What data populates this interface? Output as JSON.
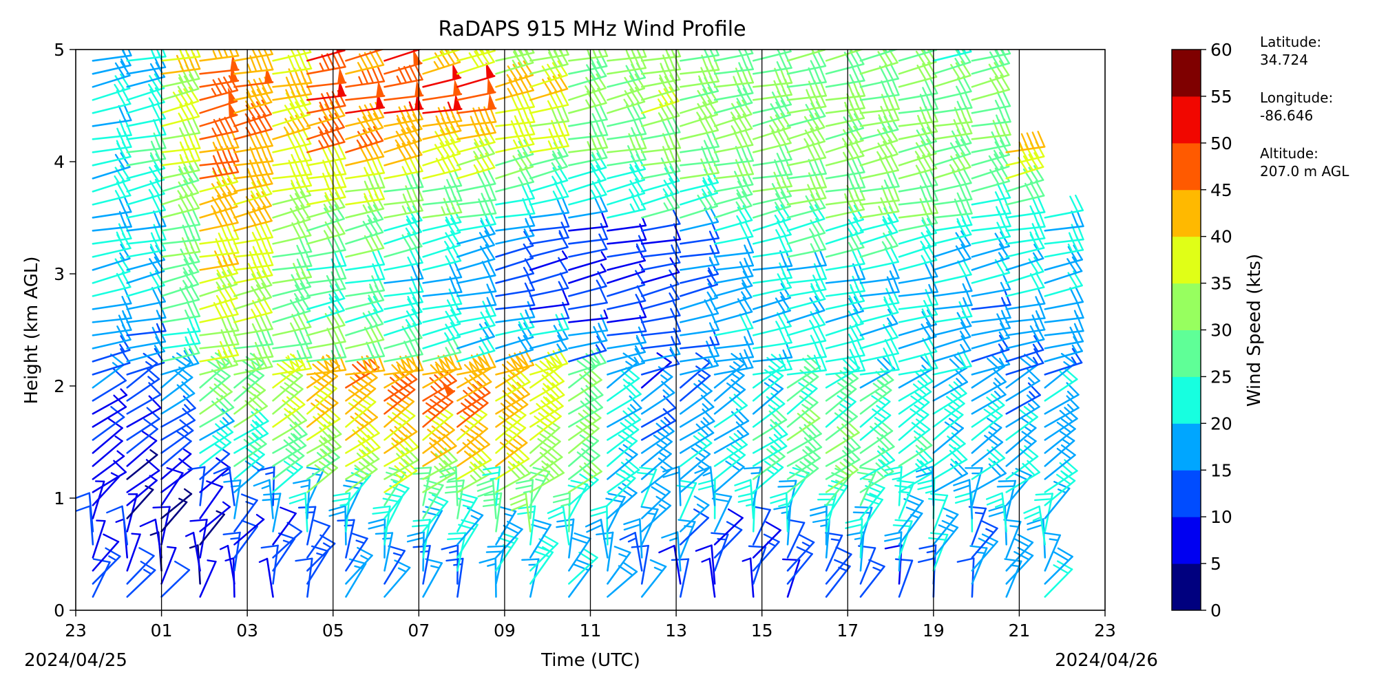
{
  "chart_data": {
    "type": "wind-barbs",
    "title": "RaDAPS 915 MHz Wind Profile",
    "xlabel": "Time (UTC)",
    "ylabel": "Height (km AGL)",
    "xlim": [
      -1,
      23
    ],
    "ylim": [
      0,
      5
    ],
    "x_ticks": [
      "23",
      "01",
      "03",
      "05",
      "07",
      "09",
      "11",
      "13",
      "15",
      "17",
      "19",
      "21",
      "23"
    ],
    "x_tick_values": [
      -1,
      1,
      3,
      5,
      7,
      9,
      11,
      13,
      15,
      17,
      19,
      21,
      23
    ],
    "y_ticks": [
      "0",
      "1",
      "2",
      "3",
      "4",
      "5"
    ],
    "date_start": "2024/04/25",
    "date_end": "2024/04/26",
    "vertical_lines_at": [
      1,
      3,
      5,
      7,
      9,
      11,
      13,
      15,
      17,
      19,
      21
    ],
    "colorbar": {
      "label": "Wind Speed (kts)",
      "ticks": [
        "0",
        "5",
        "10",
        "15",
        "20",
        "25",
        "30",
        "35",
        "40",
        "45",
        "50",
        "55",
        "60"
      ],
      "colors": [
        "#00007f",
        "#0000f1",
        "#004cff",
        "#00a6ff",
        "#17ffe0",
        "#5fff97",
        "#97ff5f",
        "#e0ff17",
        "#ffb900",
        "#ff5a00",
        "#f10700",
        "#7f0000"
      ]
    },
    "profiles": [
      {
        "time": -0.6,
        "speed": [
          12,
          10,
          8,
          6,
          8,
          10,
          14,
          16,
          18,
          20,
          20,
          22,
          22,
          22,
          20,
          18
        ]
      },
      {
        "time": 0.2,
        "speed": [
          10,
          8,
          6,
          6,
          10,
          12,
          14,
          16,
          18,
          20,
          22,
          22,
          24,
          24,
          22,
          20
        ]
      },
      {
        "time": 1.0,
        "speed": [
          8,
          6,
          6,
          8,
          12,
          16,
          20,
          24,
          26,
          28,
          30,
          32,
          34,
          36,
          36,
          38
        ]
      },
      {
        "time": 1.9,
        "speed": [
          6,
          6,
          8,
          12,
          20,
          28,
          32,
          34,
          36,
          38,
          40,
          42,
          44,
          46,
          48,
          46
        ]
      },
      {
        "time": 2.7,
        "speed": [
          8,
          10,
          14,
          22,
          26,
          30,
          30,
          32,
          34,
          36,
          38,
          40,
          42,
          44,
          46,
          44
        ]
      },
      {
        "time": 3.6,
        "speed": [
          10,
          12,
          16,
          24,
          30,
          34,
          36,
          30,
          28,
          28,
          30,
          34,
          38,
          40,
          42,
          40
        ]
      },
      {
        "time": 4.4,
        "speed": [
          12,
          14,
          18,
          28,
          36,
          40,
          42,
          30,
          26,
          26,
          30,
          36,
          40,
          44,
          48,
          50
        ]
      },
      {
        "time": 5.3,
        "speed": [
          14,
          16,
          22,
          32,
          38,
          42,
          44,
          28,
          24,
          24,
          28,
          34,
          40,
          44,
          48,
          46
        ]
      },
      {
        "time": 6.2,
        "speed": [
          14,
          18,
          24,
          34,
          40,
          44,
          46,
          26,
          22,
          22,
          26,
          32,
          38,
          44,
          50,
          48
        ]
      },
      {
        "time": 7.1,
        "speed": [
          16,
          18,
          24,
          34,
          42,
          46,
          44,
          24,
          20,
          20,
          24,
          30,
          36,
          42,
          52,
          40
        ]
      },
      {
        "time": 7.9,
        "speed": [
          16,
          20,
          26,
          36,
          42,
          44,
          42,
          22,
          18,
          16,
          20,
          28,
          34,
          40,
          50,
          38
        ]
      },
      {
        "time": 8.8,
        "speed": [
          18,
          20,
          26,
          34,
          40,
          42,
          40,
          20,
          14,
          12,
          14,
          24,
          30,
          36,
          42,
          36
        ]
      },
      {
        "time": 9.6,
        "speed": [
          18,
          22,
          28,
          32,
          36,
          38,
          36,
          18,
          12,
          10,
          12,
          22,
          28,
          34,
          38,
          34
        ]
      },
      {
        "time": 10.5,
        "speed": [
          18,
          20,
          24,
          28,
          30,
          30,
          28,
          16,
          10,
          8,
          10,
          20,
          26,
          30,
          32,
          30
        ]
      },
      {
        "time": 11.4,
        "speed": [
          16,
          18,
          20,
          22,
          22,
          20,
          18,
          14,
          10,
          8,
          10,
          22,
          26,
          30,
          32,
          30
        ]
      },
      {
        "time": 12.2,
        "speed": [
          14,
          16,
          18,
          18,
          16,
          14,
          12,
          14,
          12,
          10,
          12,
          24,
          28,
          32,
          34,
          30
        ]
      },
      {
        "time": 13.1,
        "speed": [
          12,
          14,
          18,
          20,
          18,
          16,
          14,
          16,
          16,
          14,
          16,
          26,
          28,
          30,
          32,
          28
        ]
      },
      {
        "time": 13.9,
        "speed": [
          10,
          12,
          18,
          22,
          20,
          18,
          16,
          18,
          18,
          16,
          20,
          28,
          30,
          32,
          30,
          28
        ]
      },
      {
        "time": 14.8,
        "speed": [
          8,
          12,
          20,
          24,
          24,
          22,
          20,
          20,
          20,
          20,
          22,
          28,
          30,
          30,
          30,
          28
        ]
      },
      {
        "time": 15.6,
        "speed": [
          8,
          14,
          22,
          26,
          28,
          26,
          24,
          22,
          22,
          22,
          24,
          30,
          32,
          32,
          30,
          28
        ]
      },
      {
        "time": 16.5,
        "speed": [
          10,
          16,
          24,
          28,
          28,
          26,
          24,
          22,
          22,
          22,
          24,
          30,
          32,
          32,
          30,
          28
        ]
      },
      {
        "time": 17.3,
        "speed": [
          12,
          18,
          24,
          26,
          26,
          24,
          22,
          20,
          20,
          20,
          24,
          30,
          32,
          32,
          30,
          28
        ]
      },
      {
        "time": 18.2,
        "speed": [
          12,
          18,
          22,
          24,
          24,
          22,
          20,
          20,
          20,
          20,
          24,
          30,
          32,
          32,
          30,
          28
        ]
      },
      {
        "time": 19.0,
        "speed": [
          14,
          18,
          20,
          22,
          22,
          20,
          18,
          18,
          18,
          18,
          22,
          28,
          30,
          30,
          28,
          26
        ]
      },
      {
        "time": 19.9,
        "speed": [
          14,
          16,
          18,
          20,
          20,
          18,
          16,
          16,
          16,
          18,
          20,
          26,
          28,
          28,
          30,
          30
        ]
      },
      {
        "time": 20.7,
        "speed": [
          16,
          18,
          20,
          20,
          18,
          16,
          16,
          16,
          18,
          20,
          22,
          26,
          40
        ]
      },
      {
        "time": 21.6,
        "speed": [
          18,
          20,
          20,
          20,
          18,
          18,
          16,
          16,
          18,
          20,
          22
        ]
      }
    ]
  },
  "site": {
    "lat_label": "Latitude:",
    "lat_value": "34.724",
    "lon_label": "Longitude:",
    "lon_value": "-86.646",
    "alt_label": "Altitude:",
    "alt_value": "207.0 m AGL"
  }
}
